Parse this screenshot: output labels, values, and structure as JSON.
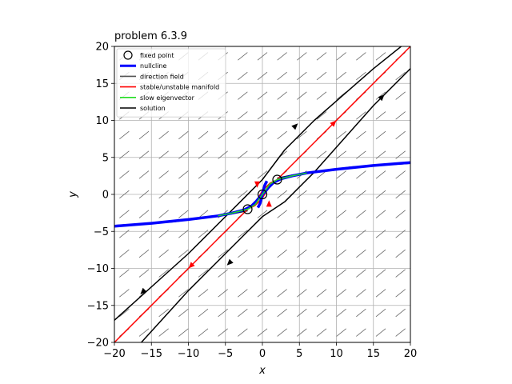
{
  "chart_data": {
    "type": "line",
    "title": "problem 6.3.9",
    "xlabel": "x",
    "ylabel": "y",
    "xlim": [
      -20,
      20
    ],
    "ylim": [
      -20,
      20
    ],
    "xticks": [
      -20,
      -15,
      -10,
      -5,
      0,
      5,
      10,
      15,
      20
    ],
    "yticks": [
      -20,
      -15,
      -10,
      -5,
      0,
      5,
      10,
      15,
      20
    ],
    "xtick_labels": [
      "−20",
      "−15",
      "−10",
      "−5",
      "0",
      "5",
      "10",
      "15",
      "20"
    ],
    "ytick_labels": [
      "−20",
      "−15",
      "−10",
      "−5",
      "0",
      "5",
      "10",
      "15",
      "20"
    ],
    "grid": true,
    "legend_position": "top-left",
    "legend": [
      {
        "label": "fixed point",
        "kind": "marker",
        "color": "#000000"
      },
      {
        "label": "nullcline",
        "kind": "line",
        "color": "#0000ff"
      },
      {
        "label": "direction field",
        "kind": "line",
        "color": "#555555"
      },
      {
        "label": "stable/unstable manifold",
        "kind": "line",
        "color": "#ff0000"
      },
      {
        "label": "slow eigenvector",
        "kind": "line",
        "color": "#22dd22"
      },
      {
        "label": "solution",
        "kind": "line",
        "color": "#000000"
      }
    ],
    "fixed_points": [
      [
        -2,
        -2
      ],
      [
        0,
        0
      ],
      [
        2,
        2
      ]
    ],
    "nullclines": [
      {
        "name": "nullcline",
        "color": "#0000ff",
        "width": 3.5,
        "points": [
          [
            -20,
            -4.3
          ],
          [
            -15,
            -3.9
          ],
          [
            -10,
            -3.4
          ],
          [
            -6,
            -2.9
          ],
          [
            -4,
            -2.5
          ],
          [
            -2.5,
            -2.1
          ],
          [
            -1.5,
            -1.6
          ],
          [
            -0.8,
            -0.9
          ],
          [
            -0.3,
            -0.3
          ],
          [
            0,
            0
          ],
          [
            0.3,
            0.3
          ],
          [
            0.8,
            0.9
          ],
          [
            1.5,
            1.6
          ],
          [
            2.5,
            2.1
          ],
          [
            4,
            2.5
          ],
          [
            6,
            2.9
          ],
          [
            10,
            3.4
          ],
          [
            15,
            3.9
          ],
          [
            20,
            4.3
          ]
        ]
      },
      {
        "name": "nullcline",
        "color": "#0000ff",
        "width": 3.5,
        "points": [
          [
            -0.6,
            -1.8
          ],
          [
            -0.3,
            -1.2
          ],
          [
            0,
            0
          ],
          [
            0.3,
            1.2
          ],
          [
            0.6,
            1.8
          ]
        ]
      }
    ],
    "manifolds": [
      {
        "color": "#ff0000",
        "points": [
          [
            -20,
            -20
          ],
          [
            20,
            20
          ]
        ]
      },
      {
        "color": "#ff0000",
        "points": [
          [
            -2,
            -2
          ],
          [
            -1,
            -1.2
          ],
          [
            0,
            0.5
          ],
          [
            1,
            1.5
          ],
          [
            2,
            2
          ]
        ]
      },
      {
        "color": "#ff0000",
        "points": [
          [
            -2,
            -2
          ],
          [
            -1,
            -1.5
          ],
          [
            0,
            -0.5
          ],
          [
            1,
            1.2
          ],
          [
            2,
            2
          ]
        ]
      }
    ],
    "slow_eigenvectors": [
      {
        "color": "#22dd22",
        "points": [
          [
            -6,
            -2.9
          ],
          [
            -4,
            -2.5
          ],
          [
            -2,
            -2
          ],
          [
            -1,
            -1.4
          ],
          [
            0,
            0
          ],
          [
            1,
            1.4
          ],
          [
            2,
            2
          ],
          [
            4,
            2.5
          ],
          [
            6,
            2.9
          ]
        ]
      }
    ],
    "solutions": [
      {
        "color": "#000000",
        "points": [
          [
            -20,
            -17
          ],
          [
            -10,
            -8
          ],
          [
            -3,
            -1
          ],
          [
            0,
            2
          ],
          [
            3,
            6
          ],
          [
            7,
            10
          ],
          [
            15,
            17
          ],
          [
            20,
            21
          ]
        ]
      },
      {
        "color": "#000000",
        "points": [
          [
            -20,
            -24
          ],
          [
            -10,
            -13
          ],
          [
            -3,
            -6
          ],
          [
            0,
            -3
          ],
          [
            3,
            -1
          ],
          [
            7,
            3
          ],
          [
            15,
            12
          ],
          [
            20,
            17
          ]
        ]
      },
      {
        "color": "#000000",
        "points": [
          [
            -20,
            -4.2
          ],
          [
            -12,
            -3.7
          ],
          [
            -6,
            -2.9
          ],
          [
            -4,
            -2.6
          ],
          [
            -2,
            -2.2
          ]
        ]
      },
      {
        "color": "#000000",
        "points": [
          [
            2,
            2.2
          ],
          [
            4,
            2.6
          ],
          [
            6,
            2.9
          ],
          [
            12,
            3.7
          ],
          [
            20,
            4.2
          ]
        ]
      }
    ],
    "manifold_arrows": [
      {
        "at": [
          -10,
          -10
        ],
        "dir": [
          -1,
          -1
        ],
        "color": "#ff0000"
      },
      {
        "at": [
          10,
          10
        ],
        "dir": [
          1,
          1
        ],
        "color": "#ff0000"
      },
      {
        "at": [
          -0.7,
          0.9
        ],
        "dir": [
          0,
          -1
        ],
        "color": "#ff0000"
      },
      {
        "at": [
          0.9,
          -0.8
        ],
        "dir": [
          0,
          1
        ],
        "color": "#ff0000"
      }
    ],
    "solution_arrows": [
      {
        "at": [
          -16.5,
          -13.5
        ],
        "dir": [
          -1,
          -1
        ],
        "color": "#000000"
      },
      {
        "at": [
          4.8,
          9.6
        ],
        "dir": [
          1,
          1
        ],
        "color": "#000000"
      },
      {
        "at": [
          16.5,
          13.5
        ],
        "dir": [
          1,
          1
        ],
        "color": "#000000"
      },
      {
        "at": [
          -4.8,
          -9.6
        ],
        "dir": [
          -1,
          -1
        ],
        "color": "#000000"
      }
    ]
  }
}
